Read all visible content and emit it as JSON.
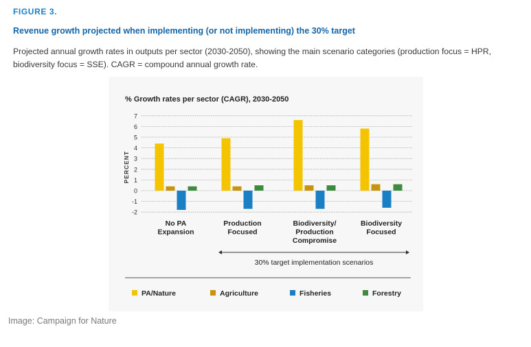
{
  "figure_label": "FIGURE 3.",
  "title": "Revenue growth projected when implementing (or not implementing) the 30% target",
  "description": "Projected annual growth rates in outputs per sector (2030-2050), showing the main scenario categories (production focus = HPR, biodiversity focus = SSE). CAGR = compound annual growth rate.",
  "credit": "Image: Campaign for Nature",
  "colors": {
    "pa_nature": "#f5c400",
    "agriculture": "#c8940e",
    "fisheries": "#1b7fc4",
    "forestry": "#3e8a3e"
  },
  "chart_data": {
    "type": "bar",
    "title": "% Growth rates per sector (CAGR), 2030-2050",
    "ylabel": "PERCENT",
    "xlabel": "",
    "ylim": [
      -2,
      7
    ],
    "yticks": [
      -2,
      -1,
      0,
      1,
      2,
      3,
      4,
      5,
      6,
      7
    ],
    "grid": true,
    "categories": [
      [
        "No PA",
        "Expansion"
      ],
      [
        "Production",
        "Focused"
      ],
      [
        "Biodiversity/",
        "Production",
        "Compromise"
      ],
      [
        "Biodiversity",
        "Focused"
      ]
    ],
    "series": [
      {
        "name": "PA/Nature",
        "color": "#f5c400",
        "values": [
          4.4,
          4.9,
          6.6,
          5.8
        ]
      },
      {
        "name": "Agriculture",
        "color": "#c8940e",
        "values": [
          0.4,
          0.4,
          0.5,
          0.6
        ]
      },
      {
        "name": "Fisheries",
        "color": "#1b7fc4",
        "values": [
          -1.8,
          -1.7,
          -1.7,
          -1.6
        ]
      },
      {
        "name": "Forestry",
        "color": "#3e8a3e",
        "values": [
          0.4,
          0.5,
          0.5,
          0.6
        ]
      }
    ],
    "annotation": "30% target implementation scenarios",
    "legend_position": "bottom"
  }
}
